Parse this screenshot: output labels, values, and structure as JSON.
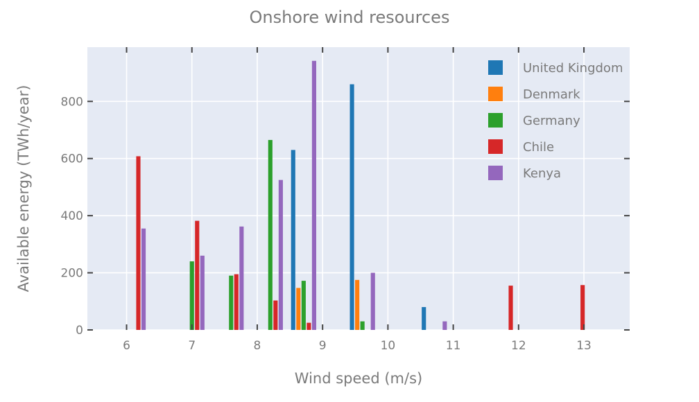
{
  "chart_data": {
    "type": "bar",
    "title": "Onshore wind resources",
    "xlabel": "Wind speed (m/s)",
    "ylabel": "Available energy (TWh/year)",
    "xlim": [
      5.4,
      13.7
    ],
    "ylim": [
      0,
      990
    ],
    "xticks": [
      6,
      7,
      8,
      9,
      10,
      11,
      12,
      13
    ],
    "yticks": [
      0,
      200,
      400,
      600,
      800
    ],
    "bar_width_units": 0.065,
    "legend_position": "top-right",
    "grid": true,
    "series": [
      {
        "name": "United Kingdom",
        "color": "#1f77b4",
        "points": [
          {
            "x": 8.55,
            "y": 630
          },
          {
            "x": 9.45,
            "y": 860
          },
          {
            "x": 10.55,
            "y": 80
          }
        ]
      },
      {
        "name": "Denmark",
        "color": "#ff7f0e",
        "points": [
          {
            "x": 8.63,
            "y": 147
          },
          {
            "x": 9.53,
            "y": 175
          }
        ]
      },
      {
        "name": "Germany",
        "color": "#2ca02c",
        "points": [
          {
            "x": 7.0,
            "y": 240
          },
          {
            "x": 7.6,
            "y": 190
          },
          {
            "x": 8.2,
            "y": 665
          },
          {
            "x": 8.71,
            "y": 172
          },
          {
            "x": 9.61,
            "y": 30
          }
        ]
      },
      {
        "name": "Chile",
        "color": "#d62728",
        "points": [
          {
            "x": 6.18,
            "y": 608
          },
          {
            "x": 7.08,
            "y": 382
          },
          {
            "x": 7.68,
            "y": 195
          },
          {
            "x": 8.28,
            "y": 103
          },
          {
            "x": 8.79,
            "y": 25
          },
          {
            "x": 11.88,
            "y": 155
          },
          {
            "x": 12.98,
            "y": 157
          }
        ]
      },
      {
        "name": "Kenya",
        "color": "#9467bd",
        "points": [
          {
            "x": 6.26,
            "y": 355
          },
          {
            "x": 7.16,
            "y": 260
          },
          {
            "x": 7.76,
            "y": 362
          },
          {
            "x": 8.36,
            "y": 525
          },
          {
            "x": 8.87,
            "y": 942
          },
          {
            "x": 9.77,
            "y": 200
          },
          {
            "x": 10.87,
            "y": 30
          }
        ]
      }
    ]
  }
}
